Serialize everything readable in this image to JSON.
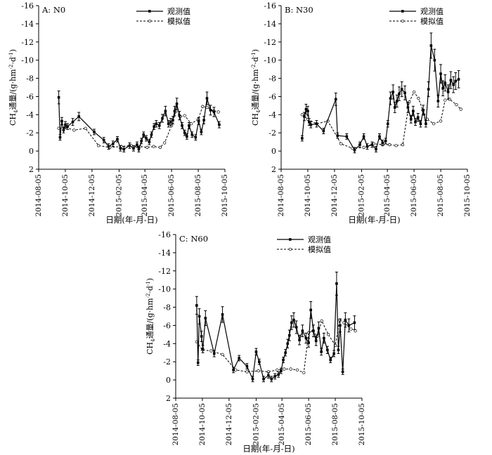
{
  "figure": {
    "legend_observed": "观测值",
    "legend_simulated": "模拟值",
    "xlabel": "日期(年-月-日)",
    "ylabel_main": "CH",
    "ylabel_sub": "4",
    "ylabel_rest": "通量/(g·hm",
    "ylabel_sup1": "-2",
    "ylabel_mid": "·d",
    "ylabel_sup2": "-1",
    "ylabel_end": ")"
  },
  "chart_data": [
    {
      "type": "line",
      "title": "A: N0",
      "xlabel": "日期(年-月-日)",
      "ylabel": "CH4通量/(g·hm-2·d-1)",
      "y_inverted": true,
      "ylim": [
        2,
        -16
      ],
      "yticks": [
        2,
        0,
        -2,
        -4,
        -6,
        -8,
        -10,
        -12,
        -14,
        -16
      ],
      "xticks": [
        "2014-08-05",
        "2014-10-05",
        "2014-12-05",
        "2015-02-05",
        "2015-04-05",
        "2015-06-05",
        "2015-08-05",
        "2015-10-05"
      ],
      "legend_position": "top-right",
      "series": [
        {
          "name": "观测值",
          "x": [
            "2014-09-20",
            "2014-09-23",
            "2014-09-27",
            "2014-10-01",
            "2014-10-05",
            "2014-10-10",
            "2014-10-22",
            "2014-11-05",
            "2014-12-10",
            "2015-01-01",
            "2015-01-12",
            "2015-01-22",
            "2015-02-01",
            "2015-02-08",
            "2015-02-16",
            "2015-03-01",
            "2015-03-10",
            "2015-03-18",
            "2015-03-22",
            "2015-03-28",
            "2015-04-02",
            "2015-04-08",
            "2015-04-15",
            "2015-04-20",
            "2015-04-26",
            "2015-05-01",
            "2015-05-08",
            "2015-05-15",
            "2015-05-22",
            "2015-05-29",
            "2015-06-03",
            "2015-06-08",
            "2015-06-12",
            "2015-06-17",
            "2015-06-23",
            "2015-06-29",
            "2015-07-05",
            "2015-07-10",
            "2015-07-15",
            "2015-07-22",
            "2015-07-30",
            "2015-08-06",
            "2015-08-12",
            "2015-08-18",
            "2015-08-25",
            "2015-09-02",
            "2015-09-10",
            "2015-09-22"
          ],
          "y": [
            -5.9,
            -1.5,
            -3.3,
            -2.3,
            -2.9,
            -2.7,
            -3.2,
            -3.8,
            -2.1,
            -1.2,
            -0.5,
            -0.8,
            -1.3,
            -0.3,
            -0.2,
            -0.6,
            -0.3,
            -0.7,
            -0.2,
            -1.1,
            -1.8,
            -1.4,
            -1.0,
            -1.8,
            -2.7,
            -3.0,
            -2.8,
            -3.6,
            -4.4,
            -3.0,
            -3.2,
            -3.4,
            -4.4,
            -5.2,
            -3.9,
            -2.8,
            -2.0,
            -1.6,
            -2.8,
            -1.8,
            -1.5,
            -3.3,
            -2.1,
            -3.4,
            -5.8,
            -4.5,
            -4.3,
            -2.9
          ],
          "style": "solid, filled markers, error bars"
        },
        {
          "name": "模拟值",
          "x": [
            "2014-09-20",
            "2014-10-05",
            "2014-10-25",
            "2014-11-20",
            "2014-12-20",
            "2015-01-15",
            "2015-02-10",
            "2015-03-05",
            "2015-03-25",
            "2015-04-10",
            "2015-04-25",
            "2015-05-10",
            "2015-05-20",
            "2015-06-05",
            "2015-06-15",
            "2015-06-25",
            "2015-07-05",
            "2015-07-20",
            "2015-08-05",
            "2015-08-15",
            "2015-08-25",
            "2015-09-10",
            "2015-09-20"
          ],
          "y": [
            -2.5,
            -2.6,
            -2.3,
            -2.5,
            -0.6,
            -0.4,
            -0.5,
            -0.6,
            -0.5,
            -0.4,
            -0.5,
            -0.4,
            -0.9,
            -2.8,
            -4.4,
            -3.8,
            -3.9,
            -3.0,
            -3.5,
            -4.9,
            -4.8,
            -4.4,
            -4.3
          ],
          "style": "dashed, open markers"
        }
      ]
    },
    {
      "type": "line",
      "title": "B: N30",
      "xlabel": "日期(年-月-日)",
      "ylabel": "CH4通量/(g·hm-2·d-1)",
      "y_inverted": true,
      "ylim": [
        2,
        -16
      ],
      "yticks": [
        2,
        0,
        -2,
        -4,
        -6,
        -8,
        -10,
        -12,
        -14,
        -16
      ],
      "xticks": [
        "2014-08-05",
        "2014-10-05",
        "2014-12-05",
        "2015-02-05",
        "2015-04-05",
        "2015-06-05",
        "2015-08-05",
        "2015-10-05"
      ],
      "legend_position": "top-right",
      "series": [
        {
          "name": "观测值",
          "x": [
            "2014-09-22",
            "2014-09-27",
            "2014-10-01",
            "2014-10-05",
            "2014-10-08",
            "2014-10-12",
            "2014-10-25",
            "2014-11-10",
            "2014-12-08",
            "2014-12-12",
            "2015-01-02",
            "2015-01-20",
            "2015-02-01",
            "2015-02-10",
            "2015-02-18",
            "2015-03-01",
            "2015-03-10",
            "2015-03-18",
            "2015-03-25",
            "2015-04-01",
            "2015-04-06",
            "2015-04-12",
            "2015-04-18",
            "2015-04-22",
            "2015-04-27",
            "2015-05-02",
            "2015-05-08",
            "2015-05-15",
            "2015-05-22",
            "2015-05-29",
            "2015-06-03",
            "2015-06-08",
            "2015-06-14",
            "2015-06-20",
            "2015-06-26",
            "2015-07-02",
            "2015-07-08",
            "2015-07-14",
            "2015-07-22",
            "2015-07-30",
            "2015-08-05",
            "2015-08-10",
            "2015-08-15",
            "2015-08-22",
            "2015-08-28",
            "2015-09-03",
            "2015-09-08",
            "2015-09-15"
          ],
          "y": [
            -1.4,
            -3.8,
            -4.6,
            -4.4,
            -3.2,
            -2.9,
            -3.0,
            -2.2,
            -5.7,
            -1.7,
            -1.6,
            -0.1,
            -0.7,
            -1.6,
            -0.5,
            -0.7,
            -0.2,
            -1.6,
            -0.9,
            -1.1,
            -3.0,
            -5.8,
            -6.5,
            -4.8,
            -5.5,
            -6.3,
            -6.8,
            -6.4,
            -4.8,
            -3.5,
            -4.4,
            -3.2,
            -3.7,
            -3.0,
            -4.5,
            -3.0,
            -6.8,
            -11.6,
            -10.0,
            -5.5,
            -8.5,
            -6.9,
            -7.5,
            -6.5,
            -7.8,
            -7.3,
            -7.7,
            -7.9
          ],
          "style": "solid, filled markers, error bars"
        },
        {
          "name": "模拟值",
          "x": [
            "2014-09-22",
            "2014-10-05",
            "2014-10-25",
            "2014-11-20",
            "2014-12-20",
            "2015-01-15",
            "2015-02-10",
            "2015-03-05",
            "2015-03-25",
            "2015-04-10",
            "2015-04-25",
            "2015-05-10",
            "2015-05-25",
            "2015-06-05",
            "2015-06-15",
            "2015-06-25",
            "2015-07-05",
            "2015-07-20",
            "2015-08-05",
            "2015-08-15",
            "2015-08-25",
            "2015-09-10",
            "2015-09-20"
          ],
          "y": [
            -4.0,
            -3.5,
            -3.0,
            -3.3,
            -0.8,
            -0.3,
            -0.4,
            -0.8,
            -0.7,
            -0.7,
            -0.6,
            -0.7,
            -5.4,
            -6.5,
            -5.8,
            -4.5,
            -3.5,
            -3.0,
            -3.3,
            -5.6,
            -5.7,
            -5.1,
            -4.6
          ],
          "style": "dashed, open markers"
        }
      ]
    },
    {
      "type": "line",
      "title": "C: N60",
      "xlabel": "日期(年-月-日)",
      "ylabel": "CH4通量/(g·hm-2·d-1)",
      "y_inverted": true,
      "ylim": [
        2,
        -16
      ],
      "yticks": [
        2,
        0,
        -2,
        -4,
        -6,
        -8,
        -10,
        -12,
        -14,
        -16
      ],
      "xticks": [
        "2014-08-05",
        "2014-10-05",
        "2014-12-05",
        "2015-02-05",
        "2015-04-05",
        "2015-06-05",
        "2015-08-05",
        "2015-10-05"
      ],
      "legend_position": "top-right",
      "series": [
        {
          "name": "观测值",
          "x": [
            "2014-09-22",
            "2014-09-25",
            "2014-09-28",
            "2014-10-03",
            "2014-10-06",
            "2014-10-12",
            "2014-11-01",
            "2014-11-20",
            "2014-12-15",
            "2014-12-28",
            "2015-01-15",
            "2015-01-28",
            "2015-02-05",
            "2015-02-12",
            "2015-02-22",
            "2015-03-05",
            "2015-03-12",
            "2015-03-20",
            "2015-03-28",
            "2015-04-03",
            "2015-04-08",
            "2015-04-13",
            "2015-04-18",
            "2015-04-22",
            "2015-04-27",
            "2015-05-02",
            "2015-05-08",
            "2015-05-15",
            "2015-05-22",
            "2015-05-30",
            "2015-06-05",
            "2015-06-10",
            "2015-06-16",
            "2015-06-22",
            "2015-06-28",
            "2015-07-04",
            "2015-07-10",
            "2015-07-18",
            "2015-07-25",
            "2015-08-02",
            "2015-08-08",
            "2015-08-12",
            "2015-08-16",
            "2015-08-22",
            "2015-08-28",
            "2015-09-05",
            "2015-09-18"
          ],
          "y": [
            -8.2,
            -1.9,
            -7.0,
            -4.8,
            -3.4,
            -6.8,
            -2.9,
            -7.2,
            -1.1,
            -2.4,
            -1.5,
            -0.1,
            -3.1,
            -2.0,
            -0.1,
            -0.5,
            -0.1,
            -0.4,
            -0.6,
            -1.0,
            -2.2,
            -3.0,
            -4.0,
            -4.9,
            -6.3,
            -6.6,
            -5.8,
            -4.4,
            -5.4,
            -4.6,
            -4.1,
            -7.7,
            -5.4,
            -4.3,
            -5.7,
            -3.1,
            -4.6,
            -3.3,
            -2.2,
            -2.9,
            -10.6,
            -3.3,
            -6.0,
            -0.9,
            -6.6,
            -6.0,
            -6.3
          ],
          "style": "solid, filled markers, error bars"
        },
        {
          "name": "模拟值",
          "x": [
            "2014-09-22",
            "2014-10-05",
            "2014-10-25",
            "2014-11-20",
            "2014-12-20",
            "2015-01-15",
            "2015-02-10",
            "2015-03-05",
            "2015-03-25",
            "2015-04-10",
            "2015-04-25",
            "2015-05-10",
            "2015-05-25",
            "2015-06-05",
            "2015-06-15",
            "2015-06-25",
            "2015-07-05",
            "2015-07-20",
            "2015-08-05",
            "2015-08-15",
            "2015-08-25",
            "2015-09-10",
            "2015-09-20"
          ],
          "y": [
            -4.2,
            -3.3,
            -3.2,
            -2.8,
            -1.1,
            -0.9,
            -1.0,
            -0.9,
            -1.1,
            -1.2,
            -1.2,
            -1.1,
            -0.8,
            -5.2,
            -5.4,
            -4.8,
            -6.5,
            -5.0,
            -3.8,
            -6.6,
            -6.3,
            -5.6,
            -5.4
          ],
          "style": "dashed, open markers"
        }
      ]
    }
  ]
}
